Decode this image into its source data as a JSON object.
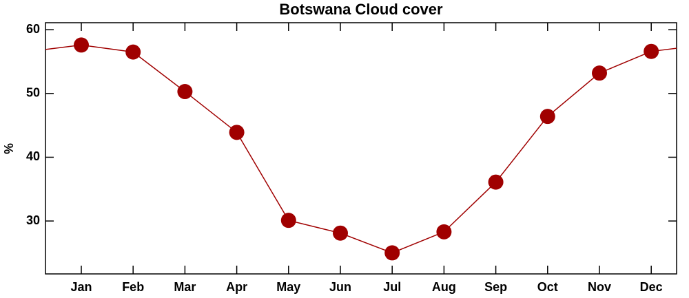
{
  "chart_data": {
    "type": "line",
    "title": "Botswana Cloud cover",
    "y_label": "%",
    "categories": [
      "Jan",
      "Feb",
      "Mar",
      "Apr",
      "May",
      "Jun",
      "Jul",
      "Aug",
      "Sep",
      "Oct",
      "Nov",
      "Dec"
    ],
    "series": [
      {
        "name": "Cloud cover",
        "color": "#a00000",
        "values": [
          57.6,
          56.5,
          50.3,
          43.9,
          30.1,
          28.1,
          25.0,
          28.3,
          36.1,
          46.4,
          53.2,
          56.6
        ]
      }
    ],
    "ylim": [
      21.7,
      61.1
    ],
    "yticks": [
      30,
      40,
      50,
      60
    ],
    "grid": false
  }
}
